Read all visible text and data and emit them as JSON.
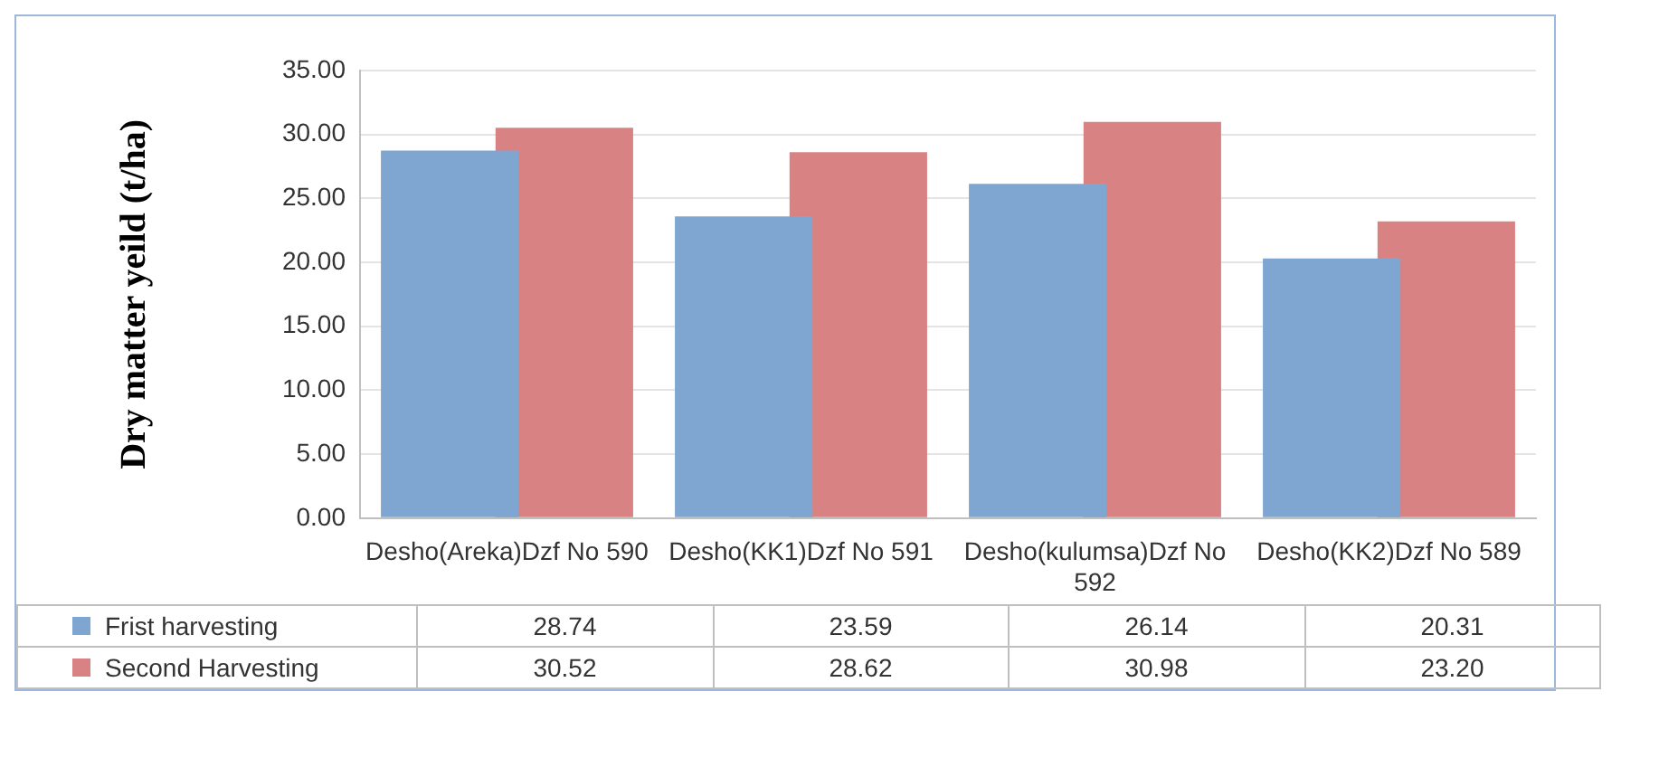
{
  "chart_data": {
    "type": "bar",
    "ylabel": "Dry matter yeild (t/ha)",
    "categories": [
      "Desho(Areka)Dzf No 590",
      "Desho(KK1)Dzf No 591",
      "Desho(kulumsa)Dzf No 592",
      "Desho(KK2)Dzf No 589"
    ],
    "series": [
      {
        "name": "Frist harvesting",
        "color": "#7fa6d0",
        "values": [
          28.74,
          23.59,
          26.14,
          20.31
        ],
        "value_labels": [
          "28.74",
          "23.59",
          "26.14",
          "20.31"
        ]
      },
      {
        "name": "Second Harvesting",
        "color": "#d98283",
        "values": [
          30.52,
          28.62,
          30.98,
          23.2
        ],
        "value_labels": [
          "30.52",
          "28.62",
          "30.98",
          "23.20"
        ]
      }
    ],
    "ylim": [
      0,
      35
    ],
    "yticks": [
      {
        "value": 0,
        "label": "0.00"
      },
      {
        "value": 5,
        "label": "5.00"
      },
      {
        "value": 10,
        "label": "10.00"
      },
      {
        "value": 15,
        "label": "15.00"
      },
      {
        "value": 20,
        "label": "20.00"
      },
      {
        "value": 25,
        "label": "25.00"
      },
      {
        "value": 30,
        "label": "30.00"
      },
      {
        "value": 35,
        "label": "35.00"
      }
    ],
    "grid": "y",
    "legend": "bottom"
  }
}
